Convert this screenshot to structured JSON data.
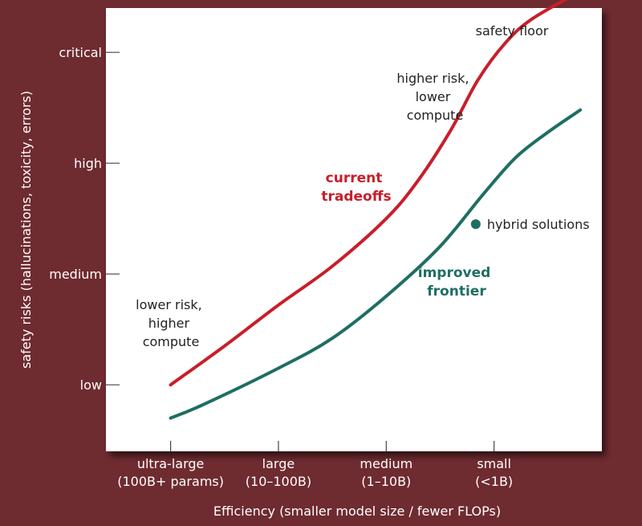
{
  "chart_data": {
    "type": "line",
    "xlabel": "Efficiency (smaller model size / fewer FLOPs)",
    "ylabel": "safety risks (hallucinations, toxicity, errors)",
    "x_categories": [
      [
        "ultra-large",
        "(100B+ params)"
      ],
      [
        "large",
        "(10–100B)"
      ],
      [
        "medium",
        "(1–10B)"
      ],
      [
        "small",
        "(<1B)"
      ]
    ],
    "y_levels": [
      "low",
      "medium",
      "high",
      "critical"
    ],
    "xlim": [
      -0.6,
      4.0
    ],
    "ylim": [
      -0.6,
      3.4
    ],
    "series": [
      {
        "name": "current tradeoffs",
        "color": "#c81e2a",
        "points": [
          [
            0,
            0
          ],
          [
            0.5,
            0.35
          ],
          [
            1,
            0.72
          ],
          [
            1.5,
            1.07
          ],
          [
            2,
            1.5
          ],
          [
            2.3,
            1.85
          ],
          [
            2.6,
            2.3
          ],
          [
            2.85,
            2.75
          ],
          [
            3.1,
            3.08
          ],
          [
            3.35,
            3.3
          ],
          [
            3.8,
            3.55
          ]
        ]
      },
      {
        "name": "improved frontier",
        "color": "#1f6e62",
        "points": [
          [
            0,
            -0.3
          ],
          [
            0.3,
            -0.18
          ],
          [
            1,
            0.15
          ],
          [
            1.5,
            0.42
          ],
          [
            2,
            0.8
          ],
          [
            2.5,
            1.25
          ],
          [
            2.9,
            1.72
          ],
          [
            3.2,
            2.05
          ],
          [
            3.5,
            2.28
          ],
          [
            3.8,
            2.48
          ]
        ]
      }
    ],
    "points": [
      {
        "label": "hybrid solutions",
        "x": 2.83,
        "y": 1.45,
        "color": "#1f6e62"
      }
    ],
    "annotations": {
      "safety_floor": "safety floor",
      "top_note": [
        "higher risk,",
        "lower",
        "compute"
      ],
      "bottom_note": [
        "lower risk,",
        "higher",
        "compute"
      ],
      "current_label": [
        "current",
        "tradeoffs"
      ],
      "improved_label": [
        "improved",
        "frontier"
      ]
    }
  }
}
